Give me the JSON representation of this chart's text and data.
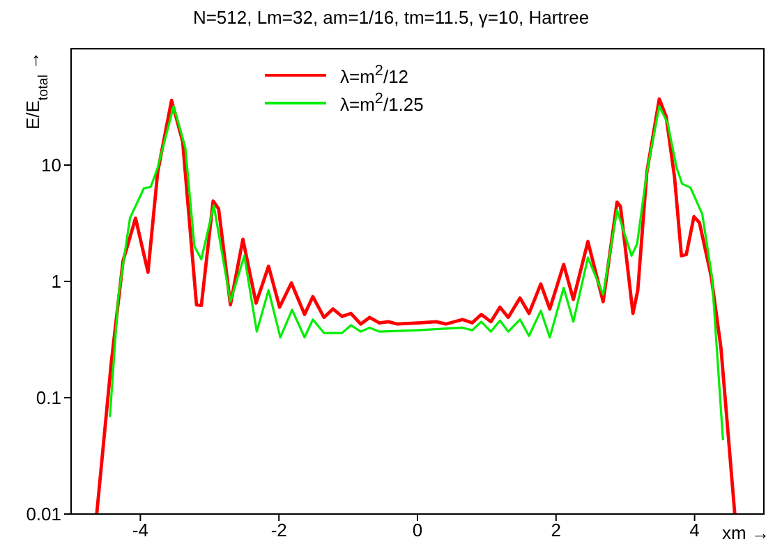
{
  "chart_data": {
    "type": "line",
    "title": "N=512, Lm=32, am=1/16, tm=11.5, γ=10, Hartree",
    "xlabel": "xm →",
    "ylabel": "E/E$_{total}$ →",
    "log": "y",
    "legend": "top",
    "marker": "none",
    "line_style": "solid",
    "xlim": [
      -5,
      5
    ],
    "xticks": [
      -4,
      -2,
      0,
      2,
      4
    ],
    "ylim": [
      0.01,
      100
    ],
    "yticks": [
      0.01,
      0.1,
      1,
      10
    ],
    "series": [
      {
        "name": "λ=m$^{2}$/12",
        "color": "#ff0000",
        "x": [
          -4.63,
          -4.42,
          -4.25,
          -4.07,
          -3.89,
          -3.75,
          -3.55,
          -3.39,
          -3.19,
          -3.12,
          -2.95,
          -2.87,
          -2.7,
          -2.52,
          -2.33,
          -2.15,
          -1.99,
          -1.82,
          -1.63,
          -1.51,
          -1.35,
          -1.22,
          -1.09,
          -0.96,
          -0.82,
          -0.69,
          -0.55,
          -0.42,
          -0.29,
          0.01,
          0.27,
          0.41,
          0.65,
          0.79,
          0.92,
          1.06,
          1.19,
          1.31,
          1.48,
          1.61,
          1.78,
          1.91,
          2.11,
          2.25,
          2.46,
          2.68,
          2.88,
          2.93,
          3.11,
          3.18,
          3.31,
          3.49,
          3.59,
          3.71,
          3.81,
          3.88,
          3.99,
          4.07,
          4.24,
          4.38,
          4.58
        ],
        "values": [
          0.01,
          0.2,
          1.5,
          3.5,
          1.2,
          8.7,
          36,
          16,
          0.63,
          0.62,
          4.9,
          4.2,
          0.63,
          2.3,
          0.65,
          1.35,
          0.6,
          0.97,
          0.52,
          0.74,
          0.49,
          0.58,
          0.5,
          0.53,
          0.43,
          0.49,
          0.44,
          0.45,
          0.43,
          0.44,
          0.45,
          0.43,
          0.47,
          0.44,
          0.52,
          0.45,
          0.6,
          0.49,
          0.72,
          0.53,
          0.95,
          0.58,
          1.4,
          0.7,
          2.2,
          0.67,
          4.8,
          4.4,
          0.53,
          0.84,
          8.6,
          37,
          26,
          7.9,
          1.66,
          1.7,
          3.6,
          3.2,
          1.1,
          0.27,
          0.01
        ]
      },
      {
        "name": "λ=m$^{2}$/1.25",
        "color": "#00ee00",
        "x": [
          -4.44,
          -4.32,
          -4.15,
          -3.95,
          -3.85,
          -3.75,
          -3.52,
          -3.35,
          -3.22,
          -3.12,
          -2.94,
          -2.7,
          -2.5,
          -2.32,
          -2.15,
          -1.98,
          -1.81,
          -1.63,
          -1.51,
          -1.35,
          -1.09,
          -0.96,
          -0.82,
          -0.69,
          -0.55,
          0,
          0.65,
          0.79,
          0.92,
          1.06,
          1.19,
          1.31,
          1.48,
          1.61,
          1.78,
          1.91,
          2.11,
          2.25,
          2.46,
          2.68,
          2.88,
          3.09,
          3.17,
          3.31,
          3.49,
          3.61,
          3.74,
          3.82,
          3.94,
          4.11,
          4.25,
          4.41
        ],
        "values": [
          0.068,
          0.73,
          3.5,
          6.3,
          6.5,
          9.5,
          32,
          14,
          2,
          1.55,
          4.5,
          0.67,
          1.66,
          0.37,
          0.84,
          0.33,
          0.57,
          0.33,
          0.47,
          0.36,
          0.36,
          0.42,
          0.37,
          0.4,
          0.37,
          0.38,
          0.4,
          0.38,
          0.45,
          0.37,
          0.46,
          0.37,
          0.47,
          0.34,
          0.56,
          0.33,
          0.88,
          0.45,
          1.6,
          0.77,
          4.1,
          1.66,
          2.1,
          8.6,
          32,
          23,
          9.5,
          6.9,
          6.4,
          3.8,
          1.1,
          0.043
        ]
      }
    ]
  }
}
